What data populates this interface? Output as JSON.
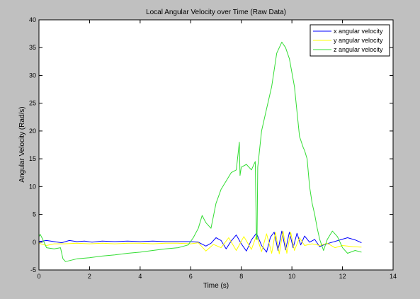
{
  "chart_data": {
    "type": "line",
    "title": "Local Angular Velocity over Time (Raw Data)",
    "xlabel": "Time (s)",
    "ylabel": "Angular Velocity (Rad/s)",
    "xlim": [
      0,
      14
    ],
    "ylim": [
      -5,
      40
    ],
    "xticks": [
      0,
      2,
      4,
      6,
      8,
      10,
      12,
      14
    ],
    "yticks": [
      -5,
      0,
      5,
      10,
      15,
      20,
      25,
      30,
      35,
      40
    ],
    "grid": false,
    "legend_position": "top-right",
    "series": [
      {
        "name": "x angular velocity",
        "color": "#0000ff",
        "x": [
          0,
          0.3,
          0.6,
          0.9,
          1.2,
          1.5,
          1.8,
          2.1,
          2.5,
          3.0,
          3.5,
          4.0,
          4.5,
          5.0,
          5.5,
          6.0,
          6.3,
          6.6,
          6.8,
          7.0,
          7.2,
          7.4,
          7.6,
          7.8,
          8.0,
          8.2,
          8.4,
          8.6,
          8.8,
          9.0,
          9.15,
          9.3,
          9.45,
          9.6,
          9.75,
          9.9,
          10.05,
          10.2,
          10.35,
          10.5,
          10.7,
          10.9,
          11.1,
          11.3,
          11.6,
          11.9,
          12.2,
          12.5,
          12.75
        ],
        "y": [
          0.1,
          0.3,
          0.1,
          -0.1,
          0.3,
          0.1,
          0.2,
          0.0,
          0.2,
          0.1,
          0.2,
          0.1,
          0.2,
          0.1,
          0.1,
          0.1,
          0.0,
          -0.7,
          -0.2,
          0.8,
          0.3,
          -1.2,
          0.2,
          1.3,
          -0.3,
          -1.6,
          0.4,
          1.6,
          -0.6,
          -1.8,
          0.9,
          1.8,
          -1.5,
          2.0,
          -1.4,
          1.8,
          -1.0,
          1.6,
          -0.5,
          1.1,
          0.0,
          0.5,
          -0.8,
          -0.4,
          0.0,
          0.4,
          0.8,
          0.4,
          -0.1
        ]
      },
      {
        "name": "y angular velocity",
        "color": "#ffff00",
        "x": [
          0,
          0.3,
          0.6,
          1.0,
          1.5,
          2.0,
          2.5,
          3.0,
          3.5,
          4.0,
          4.5,
          5.0,
          5.5,
          6.0,
          6.3,
          6.6,
          6.9,
          7.2,
          7.5,
          7.8,
          8.1,
          8.4,
          8.6,
          8.8,
          9.0,
          9.2,
          9.35,
          9.5,
          9.65,
          9.8,
          9.95,
          10.1,
          10.3,
          10.5,
          10.8,
          11.1,
          11.4,
          11.7,
          12.0,
          12.4,
          12.75
        ],
        "y": [
          -0.2,
          -0.6,
          -0.3,
          -0.3,
          -0.2,
          -0.3,
          -0.2,
          -0.3,
          -0.2,
          -0.2,
          -0.3,
          -0.2,
          -0.2,
          -0.3,
          -0.1,
          -1.6,
          -0.4,
          -1.0,
          0.8,
          -1.5,
          1.0,
          -1.3,
          1.2,
          -1.7,
          1.5,
          -2.0,
          1.8,
          -2.1,
          2.0,
          -2.0,
          1.8,
          -1.5,
          0.8,
          -0.6,
          -0.3,
          -0.6,
          -0.2,
          -1.0,
          -0.6,
          -0.8,
          -0.9
        ]
      },
      {
        "name": "z angular velocity",
        "color": "#33dd33",
        "x": [
          0,
          0.05,
          0.15,
          0.3,
          0.6,
          0.85,
          0.95,
          1.05,
          1.5,
          2.0,
          2.5,
          3.0,
          3.5,
          4.0,
          4.5,
          5.0,
          5.5,
          5.9,
          6.1,
          6.3,
          6.45,
          6.6,
          6.8,
          7.0,
          7.2,
          7.4,
          7.6,
          7.8,
          7.9,
          7.92,
          7.95,
          8.0,
          8.2,
          8.4,
          8.55,
          8.6,
          8.62,
          8.65,
          8.8,
          9.0,
          9.2,
          9.4,
          9.6,
          9.75,
          9.9,
          10.1,
          10.3,
          10.45,
          10.5,
          10.6,
          10.7,
          10.8,
          10.9,
          11.0,
          11.1,
          11.25,
          11.4,
          11.6,
          11.8,
          12.0,
          12.2,
          12.5,
          12.75
        ],
        "y": [
          1.0,
          1.4,
          0.5,
          -1.0,
          -1.2,
          -1.0,
          -3.0,
          -3.5,
          -3.0,
          -2.8,
          -2.5,
          -2.3,
          -2.0,
          -1.8,
          -1.5,
          -1.2,
          -1.0,
          -0.5,
          0.8,
          2.5,
          4.8,
          3.5,
          2.5,
          7.0,
          9.5,
          11.0,
          12.5,
          13.0,
          17.0,
          18.0,
          12.0,
          13.5,
          14.0,
          13.0,
          14.5,
          0.5,
          0.5,
          13.5,
          20.0,
          24.0,
          28.0,
          34.0,
          36.0,
          35.0,
          33.0,
          28.0,
          19.0,
          17.0,
          16.5,
          15.0,
          10.0,
          7.0,
          5.0,
          2.5,
          0.5,
          -1.5,
          0.5,
          2.0,
          1.0,
          -1.0,
          -2.0,
          -1.5,
          -1.8
        ]
      }
    ]
  }
}
